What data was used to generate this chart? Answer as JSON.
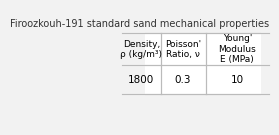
{
  "title": "Firoozkouh-191 standard sand mechanical properties",
  "col1_header": "Density,\nρ (kg/m³)",
  "col2_header": "Poisson'\nRatio, ν",
  "col3_header": "Young'\nModulus\nE (MPa)",
  "col1_value": "1800",
  "col2_value": "0.3",
  "col3_value": "10",
  "bg_color": "#f2f2f2",
  "table_bg": "#ffffff",
  "line_color": "#bbbbbb",
  "text_color": "#000000",
  "title_color": "#333333",
  "header_fontsize": 6.5,
  "value_fontsize": 7.5,
  "title_fontsize": 7.0
}
